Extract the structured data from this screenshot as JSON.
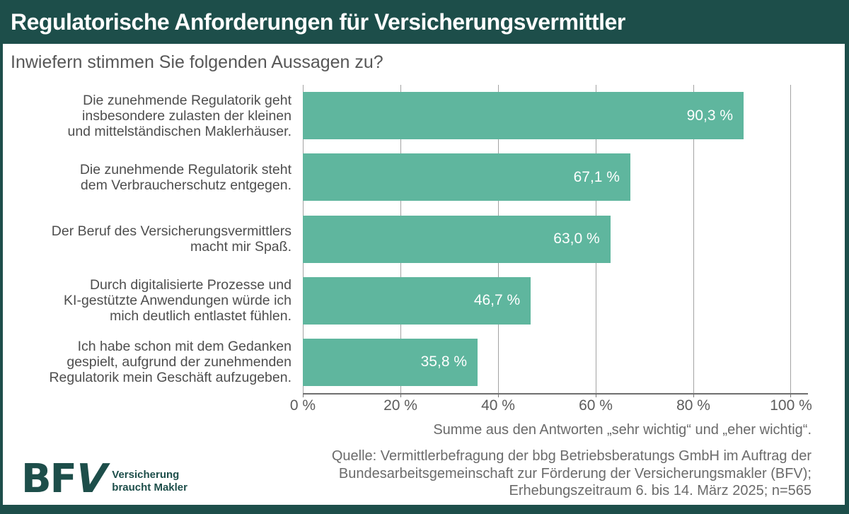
{
  "header": {
    "title": "Regulatorische Anforderungen für Versicherungsvermittler"
  },
  "subtitle": "Inwiefern stimmen Sie folgenden Aussagen zu?",
  "chart_data": {
    "type": "bar",
    "orientation": "horizontal",
    "title": "Regulatorische Anforderungen für Versicherungsvermittler",
    "question": "Inwiefern stimmen Sie folgenden Aussagen zu?",
    "categories": [
      "Die zunehmende Regulatorik geht\ninsbesondere zulasten der kleinen\nund mittelständischen Maklerhäuser.",
      "Die zunehmende Regulatorik steht\ndem Verbraucherschutz entgegen.",
      "Der Beruf des Versicherungsvermittlers\nmacht mir Spaß.",
      "Durch digitalisierte Prozesse und\nKI-gestützte Anwendungen würde ich\nmich deutlich entlastet fühlen.",
      "Ich habe schon mit dem Gedanken\ngespielt, aufgrund der zunehmenden\nRegulatorik mein Geschäft aufzugeben."
    ],
    "values": [
      90.3,
      67.1,
      63.0,
      46.7,
      35.8
    ],
    "value_labels": [
      "90,3 %",
      "67,1 %",
      "63,0 %",
      "46,7 %",
      "35,8 %"
    ],
    "x_ticks": [
      "0 %",
      "20 %",
      "40 %",
      "60 %",
      "80 %",
      "100 %"
    ],
    "x_tick_values": [
      0,
      20,
      40,
      60,
      80,
      100
    ],
    "xlim": [
      0,
      100
    ],
    "grid": true,
    "legend": false,
    "bar_color": "#5fb69e"
  },
  "caption": "Summe aus den Antworten „sehr wichtig“ und „eher wichtig“.",
  "source": "Quelle: Vermittlerbefragung der bbg Betriebsberatungs GmbH im Auftrag der\nBundesarbeitsgemeinschaft zur Förderung der Versicherungsmakler (BFV);\nErhebungszeitraum 6. bis 14. März 2025; n=565",
  "logo": {
    "acronym_first": "BF",
    "acronym_last": "V",
    "tagline": "Versicherung\nbraucht Makler"
  },
  "colors": {
    "frame": "#1d4e4a",
    "bar": "#5fb69e",
    "title_text": "#ffffff",
    "label_text": "#4e4e4e",
    "muted_text": "#6b6b6b"
  }
}
